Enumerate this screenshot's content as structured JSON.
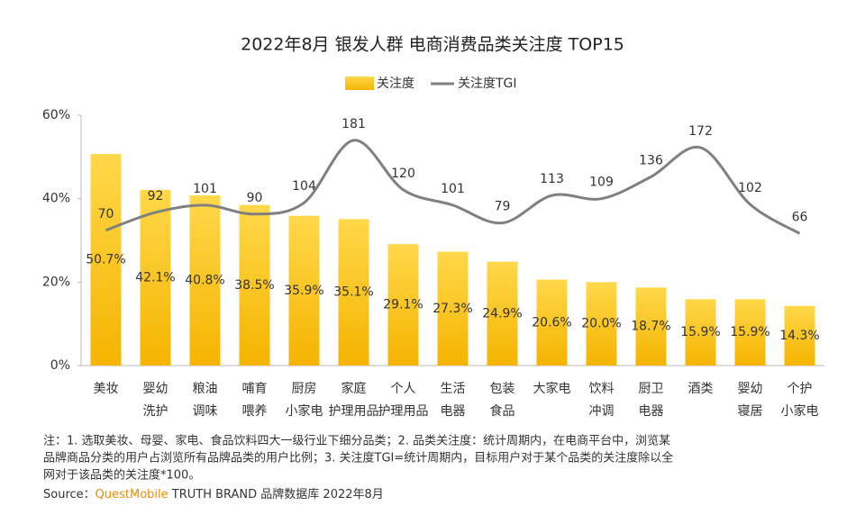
{
  "chart_data": {
    "type": "bar",
    "title": "2022年8月 银发人群 电商消费品类关注度 TOP15",
    "categories": [
      [
        "美妆"
      ],
      [
        "婴幼",
        "洗护"
      ],
      [
        "粮油",
        "调味"
      ],
      [
        "哺育",
        "喂养"
      ],
      [
        "厨房",
        "小家电"
      ],
      [
        "家庭",
        "护理用品"
      ],
      [
        "个人",
        "护理用品"
      ],
      [
        "生活",
        "电器"
      ],
      [
        "包装",
        "食品"
      ],
      [
        "大家电"
      ],
      [
        "饮料",
        "冲调"
      ],
      [
        "厨卫",
        "电器"
      ],
      [
        "酒类"
      ],
      [
        "婴幼",
        "寝居"
      ],
      [
        "个护",
        "小家电"
      ]
    ],
    "series": [
      {
        "name": "关注度",
        "type": "bar",
        "color": "#f9c000",
        "values": [
          50.7,
          42.1,
          40.8,
          38.5,
          35.9,
          35.1,
          29.1,
          27.3,
          24.9,
          20.6,
          20.0,
          18.7,
          15.9,
          15.9,
          14.3
        ],
        "value_labels": [
          "50.7%",
          "42.1%",
          "40.8%",
          "38.5%",
          "35.9%",
          "35.1%",
          "29.1%",
          "27.3%",
          "24.9%",
          "20.6%",
          "20.0%",
          "18.7%",
          "15.9%",
          "15.9%",
          "14.3%"
        ]
      },
      {
        "name": "关注度TGI",
        "type": "line",
        "color": "#808080",
        "axis": "y2",
        "values": [
          70,
          92,
          101,
          90,
          104,
          181,
          120,
          101,
          79,
          113,
          109,
          136,
          172,
          102,
          66
        ]
      }
    ],
    "ylim": [
      0,
      60
    ],
    "yticks": [
      {
        "value": 0,
        "label": "0%"
      },
      {
        "value": 20,
        "label": "20%"
      },
      {
        "value": 40,
        "label": "40%"
      },
      {
        "value": 60,
        "label": "60%"
      }
    ],
    "y2lim": [
      -97,
      212
    ],
    "note": [
      "注：1. 选取美妆、母婴、家电、食品饮料四大一级行业下细分品类；2. 品类关注度：统计周期内，在电商平台中，浏览某",
      "品牌商品分类的用户占浏览所有品牌品类的用户比例；3. 关注度TGI=统计周期内，目标用户对于某个品类的关注度除以全",
      "网对于该品类的关注度*100。"
    ],
    "source": [
      "Source：",
      "QuestMobile",
      "TRUTH BRAND 品牌数据库 2022年8月"
    ]
  }
}
